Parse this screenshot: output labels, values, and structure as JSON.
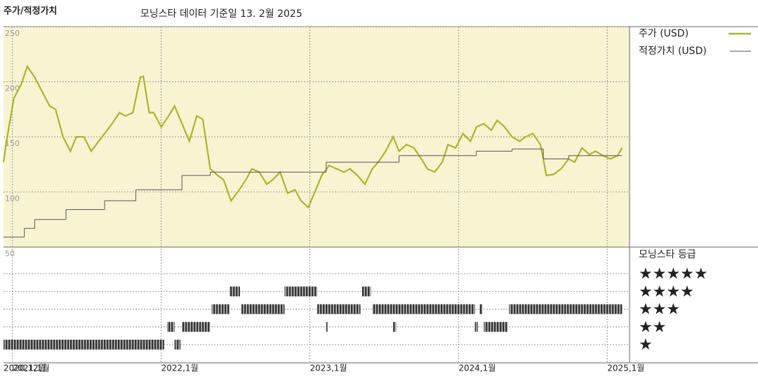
{
  "chart_data": [
    {
      "type": "line",
      "title": "주가/적정가치",
      "subtitle": "모닝스타 데이터 기준일 13. 2월 2025",
      "xlim": [
        2020.94,
        2025.15
      ],
      "ylim": [
        50,
        250
      ],
      "yticks": [
        50,
        100,
        150,
        200,
        250
      ],
      "xticks": [
        {
          "value": 2020.94,
          "label": "2020,12월"
        },
        {
          "value": 2021.0,
          "label": "2021,1월"
        },
        {
          "value": 2022.0,
          "label": "2022,1월"
        },
        {
          "value": 2023.0,
          "label": "2023,1월"
        },
        {
          "value": 2024.0,
          "label": "2024,1월"
        },
        {
          "value": 2025.0,
          "label": "2025,1월"
        }
      ],
      "grid": true,
      "series": [
        {
          "name": "주가 (USD)",
          "color": "#a9b724",
          "x": [
            2020.94,
            2020.96,
            2021.01,
            2021.06,
            2021.1,
            2021.15,
            2021.2,
            2021.25,
            2021.29,
            2021.34,
            2021.39,
            2021.43,
            2021.48,
            2021.53,
            2021.58,
            2021.62,
            2021.67,
            2021.72,
            2021.76,
            2021.81,
            2021.86,
            2021.88,
            2021.92,
            2021.95,
            2022.0,
            2022.05,
            2022.09,
            2022.14,
            2022.19,
            2022.24,
            2022.28,
            2022.33,
            2022.38,
            2022.42,
            2022.47,
            2022.52,
            2022.57,
            2022.61,
            2022.66,
            2022.71,
            2022.75,
            2022.8,
            2022.85,
            2022.9,
            2022.94,
            2022.99,
            2023.04,
            2023.08,
            2023.13,
            2023.18,
            2023.23,
            2023.27,
            2023.32,
            2023.37,
            2023.42,
            2023.46,
            2023.51,
            2023.56,
            2023.6,
            2023.65,
            2023.7,
            2023.75,
            2023.79,
            2023.84,
            2023.89,
            2023.93,
            2023.98,
            2024.03,
            2024.08,
            2024.12,
            2024.17,
            2024.22,
            2024.26,
            2024.31,
            2024.36,
            2024.41,
            2024.45,
            2024.5,
            2024.55,
            2024.57,
            2024.59,
            2024.64,
            2024.69,
            2024.74,
            2024.78,
            2024.83,
            2024.88,
            2024.92,
            2024.97,
            2025.02,
            2025.07,
            2025.1
          ],
          "values": [
            127,
            146,
            185,
            198,
            214,
            204,
            191,
            178,
            175,
            150,
            137,
            150,
            150,
            137,
            146,
            153,
            162,
            172,
            169,
            172,
            204,
            205,
            172,
            172,
            159,
            169,
            178,
            162,
            146,
            169,
            166,
            121,
            115,
            111,
            92,
            101,
            111,
            121,
            118,
            107,
            111,
            118,
            99,
            102,
            92,
            86,
            102,
            115,
            124,
            121,
            118,
            121,
            115,
            107,
            121,
            127,
            137,
            150,
            137,
            143,
            140,
            130,
            121,
            118,
            127,
            143,
            140,
            153,
            146,
            159,
            162,
            156,
            165,
            159,
            150,
            146,
            150,
            153,
            143,
            130,
            115,
            116,
            121,
            130,
            127,
            140,
            134,
            137,
            133,
            130,
            133,
            140
          ]
        },
        {
          "name": "적정가치 (USD)",
          "color": "#555555",
          "step": "post",
          "x": [
            2020.94,
            2021.08,
            2021.15,
            2021.36,
            2021.62,
            2021.83,
            2022.14,
            2022.33,
            2023.11,
            2023.6,
            2024.12,
            2024.36,
            2024.57,
            2024.74,
            2025.1
          ],
          "values": [
            59,
            67,
            75,
            84,
            92,
            102,
            115,
            118,
            127,
            133,
            137,
            139,
            130,
            133,
            133
          ]
        }
      ]
    },
    {
      "type": "rating",
      "title": "모닝스타 등급",
      "levels": [
        {
          "value": 5,
          "label": "★★★★★"
        },
        {
          "value": 4,
          "label": "★★★★"
        },
        {
          "value": 3,
          "label": "★★★"
        },
        {
          "value": 2,
          "label": "★★"
        },
        {
          "value": 1,
          "label": "★"
        }
      ],
      "periods": {
        "start": [
          2020.94,
          2022.04,
          2022.09,
          2022.14,
          2022.34,
          2022.46,
          2022.54,
          2022.83,
          2023.05,
          2023.11,
          2023.35,
          2023.42,
          2023.56,
          2024.11,
          2024.14,
          2024.17,
          2024.34
        ],
        "end": [
          2022.02,
          2022.09,
          2022.13,
          2022.33,
          2022.46,
          2022.53,
          2022.83,
          2023.05,
          2023.34,
          2023.12,
          2023.41,
          2024.11,
          2023.58,
          2024.13,
          2024.16,
          2024.33,
          2025.1
        ],
        "stars": [
          1,
          2,
          1,
          2,
          3,
          4,
          3,
          4,
          3,
          2,
          4,
          3,
          2,
          2,
          3,
          2,
          3
        ]
      }
    }
  ]
}
